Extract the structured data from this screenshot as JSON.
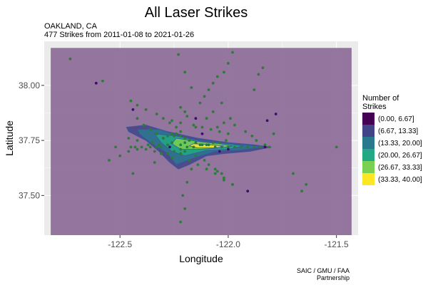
{
  "chart_data": {
    "type": "scatter",
    "title": "All Laser Strikes",
    "subtitle_line1": "OAKLAND, CA",
    "subtitle_line2": "477 Strikes from 2011-01-08 to 2021-01-26",
    "xlabel": "Longitude",
    "ylabel": "Latitude",
    "xlim": [
      -122.85,
      -121.4
    ],
    "ylim": [
      37.32,
      38.2
    ],
    "x_ticks": [
      -122.5,
      -122.0,
      -121.5
    ],
    "x_tick_labels": [
      "-122.5",
      "-122.0",
      "-121.5"
    ],
    "y_ticks": [
      37.5,
      37.75,
      38.0
    ],
    "y_tick_labels": [
      "37.50",
      "37.75",
      "38.00"
    ],
    "grid": true,
    "legend_placement": "right",
    "legend_title_line1": "Number of",
    "legend_title_line2": "Strikes",
    "legend": [
      {
        "label": "(0.00, 6.67]",
        "color": "#440154"
      },
      {
        "label": "(6.67, 13.33]",
        "color": "#414487"
      },
      {
        "label": "(13.33, 20.00]",
        "color": "#2A788E"
      },
      {
        "label": "(20.00, 26.67]",
        "color": "#22A884"
      },
      {
        "label": "(26.67, 33.33]",
        "color": "#7AD151"
      },
      {
        "label": "(33.33, 40.00]",
        "color": "#FDE725"
      }
    ],
    "background_region": {
      "x": [
        -122.82,
        -121.43
      ],
      "y": [
        37.32,
        38.17
      ],
      "color": "#8e6f99"
    },
    "density_contours": [
      {
        "level": 1,
        "color": "#414487",
        "points": [
          [
            -122.47,
            37.81
          ],
          [
            -122.38,
            37.82
          ],
          [
            -122.28,
            37.79
          ],
          [
            -122.14,
            37.76
          ],
          [
            -122.0,
            37.74
          ],
          [
            -121.88,
            37.73
          ],
          [
            -121.8,
            37.72
          ],
          [
            -121.9,
            37.7
          ],
          [
            -122.02,
            37.69
          ],
          [
            -122.1,
            37.68
          ],
          [
            -122.18,
            37.64
          ],
          [
            -122.23,
            37.62
          ],
          [
            -122.27,
            37.65
          ],
          [
            -122.32,
            37.7
          ],
          [
            -122.38,
            37.75
          ],
          [
            -122.46,
            37.79
          ]
        ]
      },
      {
        "level": 2,
        "color": "#2A788E",
        "points": [
          [
            -122.42,
            37.8
          ],
          [
            -122.32,
            37.8
          ],
          [
            -122.2,
            37.76
          ],
          [
            -122.05,
            37.74
          ],
          [
            -121.92,
            37.73
          ],
          [
            -121.84,
            37.72
          ],
          [
            -121.95,
            37.705
          ],
          [
            -122.06,
            37.7
          ],
          [
            -122.16,
            37.67
          ],
          [
            -122.24,
            37.64
          ],
          [
            -122.28,
            37.69
          ],
          [
            -122.36,
            37.74
          ],
          [
            -122.41,
            37.78
          ]
        ]
      },
      {
        "level": 3,
        "color": "#22A884",
        "points": [
          [
            -122.34,
            37.78
          ],
          [
            -122.24,
            37.77
          ],
          [
            -122.12,
            37.745
          ],
          [
            -122.0,
            37.735
          ],
          [
            -121.93,
            37.725
          ],
          [
            -122.0,
            37.71
          ],
          [
            -122.1,
            37.705
          ],
          [
            -122.2,
            37.68
          ],
          [
            -122.26,
            37.7
          ],
          [
            -122.31,
            37.74
          ]
        ]
      },
      {
        "level": 4,
        "color": "#7AD151",
        "points": [
          [
            -122.24,
            37.76
          ],
          [
            -122.14,
            37.745
          ],
          [
            -122.04,
            37.735
          ],
          [
            -121.98,
            37.725
          ],
          [
            -122.04,
            37.715
          ],
          [
            -122.14,
            37.71
          ],
          [
            -122.22,
            37.71
          ],
          [
            -122.26,
            37.735
          ]
        ]
      },
      {
        "level": 5,
        "color": "#FDE725",
        "points": [
          [
            -122.16,
            37.735
          ],
          [
            -122.08,
            37.73
          ],
          [
            -122.02,
            37.725
          ],
          [
            -122.06,
            37.716
          ],
          [
            -122.14,
            37.716
          ],
          [
            -122.18,
            37.725
          ]
        ]
      }
    ],
    "points": {
      "color": "#2d7a3a",
      "x": [
        -122.73,
        -122.58,
        -122.45,
        -122.42,
        -122.38,
        -122.33,
        -122.3,
        -122.27,
        -122.24,
        -122.22,
        -122.25,
        -122.15,
        -122.1,
        -122.07,
        -122.03,
        -122.22,
        -122.2,
        -122.21,
        -122.19,
        -122.17,
        -121.88,
        -121.86,
        -121.84,
        -121.97,
        -121.92,
        -121.89,
        -121.87,
        -122.52,
        -122.45,
        -122.43,
        -122.4,
        -122.36,
        -122.33,
        -122.31,
        -122.46,
        -122.42,
        -122.37,
        -122.35,
        -122.32,
        -122.28,
        -122.26,
        -122.3,
        -122.28,
        -122.26,
        -122.24,
        -122.22,
        -122.2,
        -122.18,
        -122.15,
        -122.12,
        -122.09,
        -122.06,
        -122.03,
        -122.0,
        -121.97,
        -121.94,
        -121.91,
        -121.88,
        -121.85,
        -121.81,
        -122.55,
        -122.5,
        -122.46,
        -122.42,
        -122.38,
        -122.34,
        -122.31,
        -122.28,
        -122.25,
        -122.22,
        -122.19,
        -122.16,
        -122.13,
        -122.1,
        -122.07,
        -122.04,
        -122.01,
        -122.22,
        -122.2,
        -122.19,
        -122.05,
        -122.02,
        -121.98,
        -121.7,
        -121.64,
        -121.66,
        -121.5,
        -122.13,
        -122.11,
        -122.09,
        -122.07,
        -122.05,
        -122.02,
        -122.0,
        -121.98,
        -122.44,
        -122.34,
        -122.26,
        -122.22,
        -122.18,
        -122.14,
        -122.1,
        -122.06,
        -122.02,
        -121.98,
        -122.23,
        -122.2,
        -122.17,
        -122.26,
        -122.22,
        -122.16,
        -122.12,
        -122.08,
        -122.04,
        -122.0,
        -122.2,
        -122.15,
        -122.11,
        -122.09,
        -122.06,
        -122.03,
        -122.42,
        -122.39,
        -122.36,
        -122.33,
        -122.3,
        -122.05,
        -122.02,
        -121.99,
        -122.2,
        -122.22,
        -121.79,
        -121.83
      ],
      "y": [
        38.12,
        38.02,
        37.93,
        37.91,
        37.89,
        37.87,
        37.85,
        37.83,
        37.81,
        37.79,
        37.77,
        37.81,
        37.85,
        37.88,
        37.92,
        37.38,
        37.44,
        37.5,
        37.56,
        37.62,
        37.98,
        38.05,
        38.08,
        37.82,
        37.79,
        37.77,
        37.75,
        37.72,
        37.72,
        37.72,
        37.72,
        37.72,
        37.72,
        37.72,
        37.76,
        37.75,
        37.73,
        37.74,
        37.73,
        37.73,
        37.74,
        37.76,
        37.77,
        37.78,
        37.78,
        37.77,
        37.76,
        37.75,
        37.74,
        37.73,
        37.73,
        37.72,
        37.72,
        37.72,
        37.72,
        37.72,
        37.72,
        37.72,
        37.72,
        37.72,
        37.66,
        37.68,
        37.7,
        37.71,
        37.71,
        37.7,
        37.69,
        37.69,
        37.7,
        37.71,
        37.72,
        37.72,
        37.73,
        37.73,
        37.74,
        37.74,
        37.75,
        37.9,
        37.88,
        37.86,
        37.61,
        37.58,
        37.55,
        37.6,
        37.55,
        37.52,
        37.72,
        37.92,
        37.95,
        37.98,
        38.01,
        38.04,
        38.06,
        38.1,
        38.15,
        37.6,
        37.65,
        37.67,
        37.69,
        37.66,
        37.64,
        37.62,
        37.6,
        37.57,
        37.55,
        38.14,
        38.06,
        37.99,
        37.84,
        37.83,
        37.82,
        37.81,
        37.8,
        37.79,
        37.78,
        37.7,
        37.68,
        37.66,
        37.64,
        37.62,
        37.6,
        37.85,
        37.82,
        37.8,
        37.78,
        37.76,
        37.81,
        37.83,
        37.85,
        37.74,
        37.73,
        37.78,
        37.73
      ]
    },
    "highlight_points": {
      "color": "#3b0f6f",
      "x": [
        -122.61,
        -122.44,
        -122.15,
        -121.91,
        -122.27,
        -121.83,
        -121.78,
        -122.12,
        -121.82,
        -122.04,
        -122.0
      ],
      "y": [
        38.01,
        37.89,
        37.85,
        37.52,
        37.72,
        37.72,
        37.87,
        37.78,
        37.84,
        37.7,
        37.71
      ]
    }
  },
  "caption_line1": "SAIC / GMU / FAA",
  "caption_line2": "Partnership"
}
